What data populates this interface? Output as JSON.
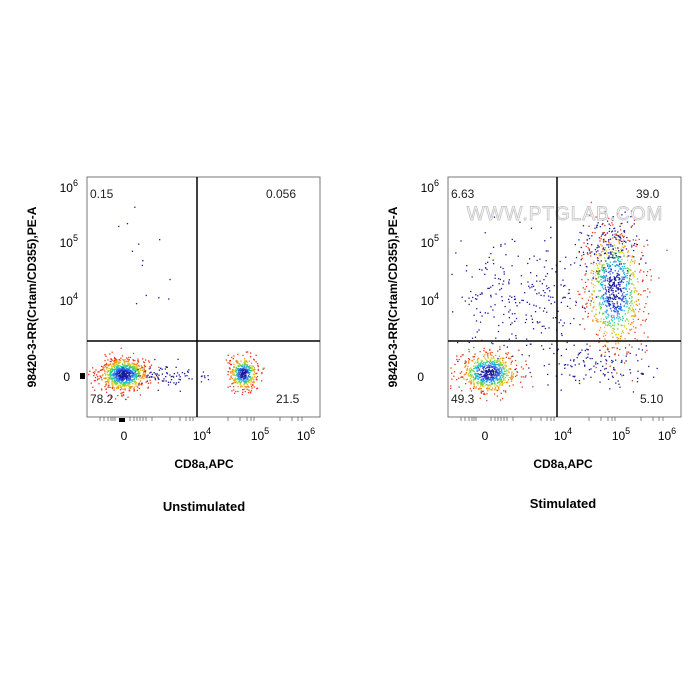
{
  "chart_data": [
    {
      "type": "scatter",
      "title": "",
      "caption": "Unstimulated",
      "xlabel": "CD8a,APC",
      "ylabel": "98420-3-RR(Crtam/CD355),PE-A",
      "scale": "biexponential",
      "x_ticks": [
        "0",
        "10",
        "10",
        "10"
      ],
      "x_tick_exponents": [
        "",
        "4",
        "5",
        "6"
      ],
      "y_ticks": [
        "0",
        "10",
        "10",
        "10"
      ],
      "y_tick_exponents": [
        "",
        "4",
        "5",
        "6"
      ],
      "gate_x": 10000,
      "gate_y": 2500,
      "quadrants": {
        "upper_left": "0.15",
        "upper_right": "0.056",
        "lower_left": "78.2",
        "lower_right": "21.5"
      },
      "watermark": ""
    },
    {
      "type": "scatter",
      "title": "",
      "caption": "Stimulated",
      "xlabel": "CD8a,APC",
      "ylabel": "98420-3-RR(Crtam/CD355),PE-A",
      "scale": "biexponential",
      "x_ticks": [
        "0",
        "10",
        "10",
        "10"
      ],
      "x_tick_exponents": [
        "",
        "4",
        "5",
        "6"
      ],
      "y_ticks": [
        "0",
        "10",
        "10",
        "10"
      ],
      "y_tick_exponents": [
        "",
        "4",
        "5",
        "6"
      ],
      "gate_x": 10000,
      "gate_y": 2500,
      "quadrants": {
        "upper_left": "6.63",
        "upper_right": "39.0",
        "lower_left": "49.3",
        "lower_right": "5.10"
      },
      "watermark": "WWW.PTGLAB.COM"
    }
  ]
}
